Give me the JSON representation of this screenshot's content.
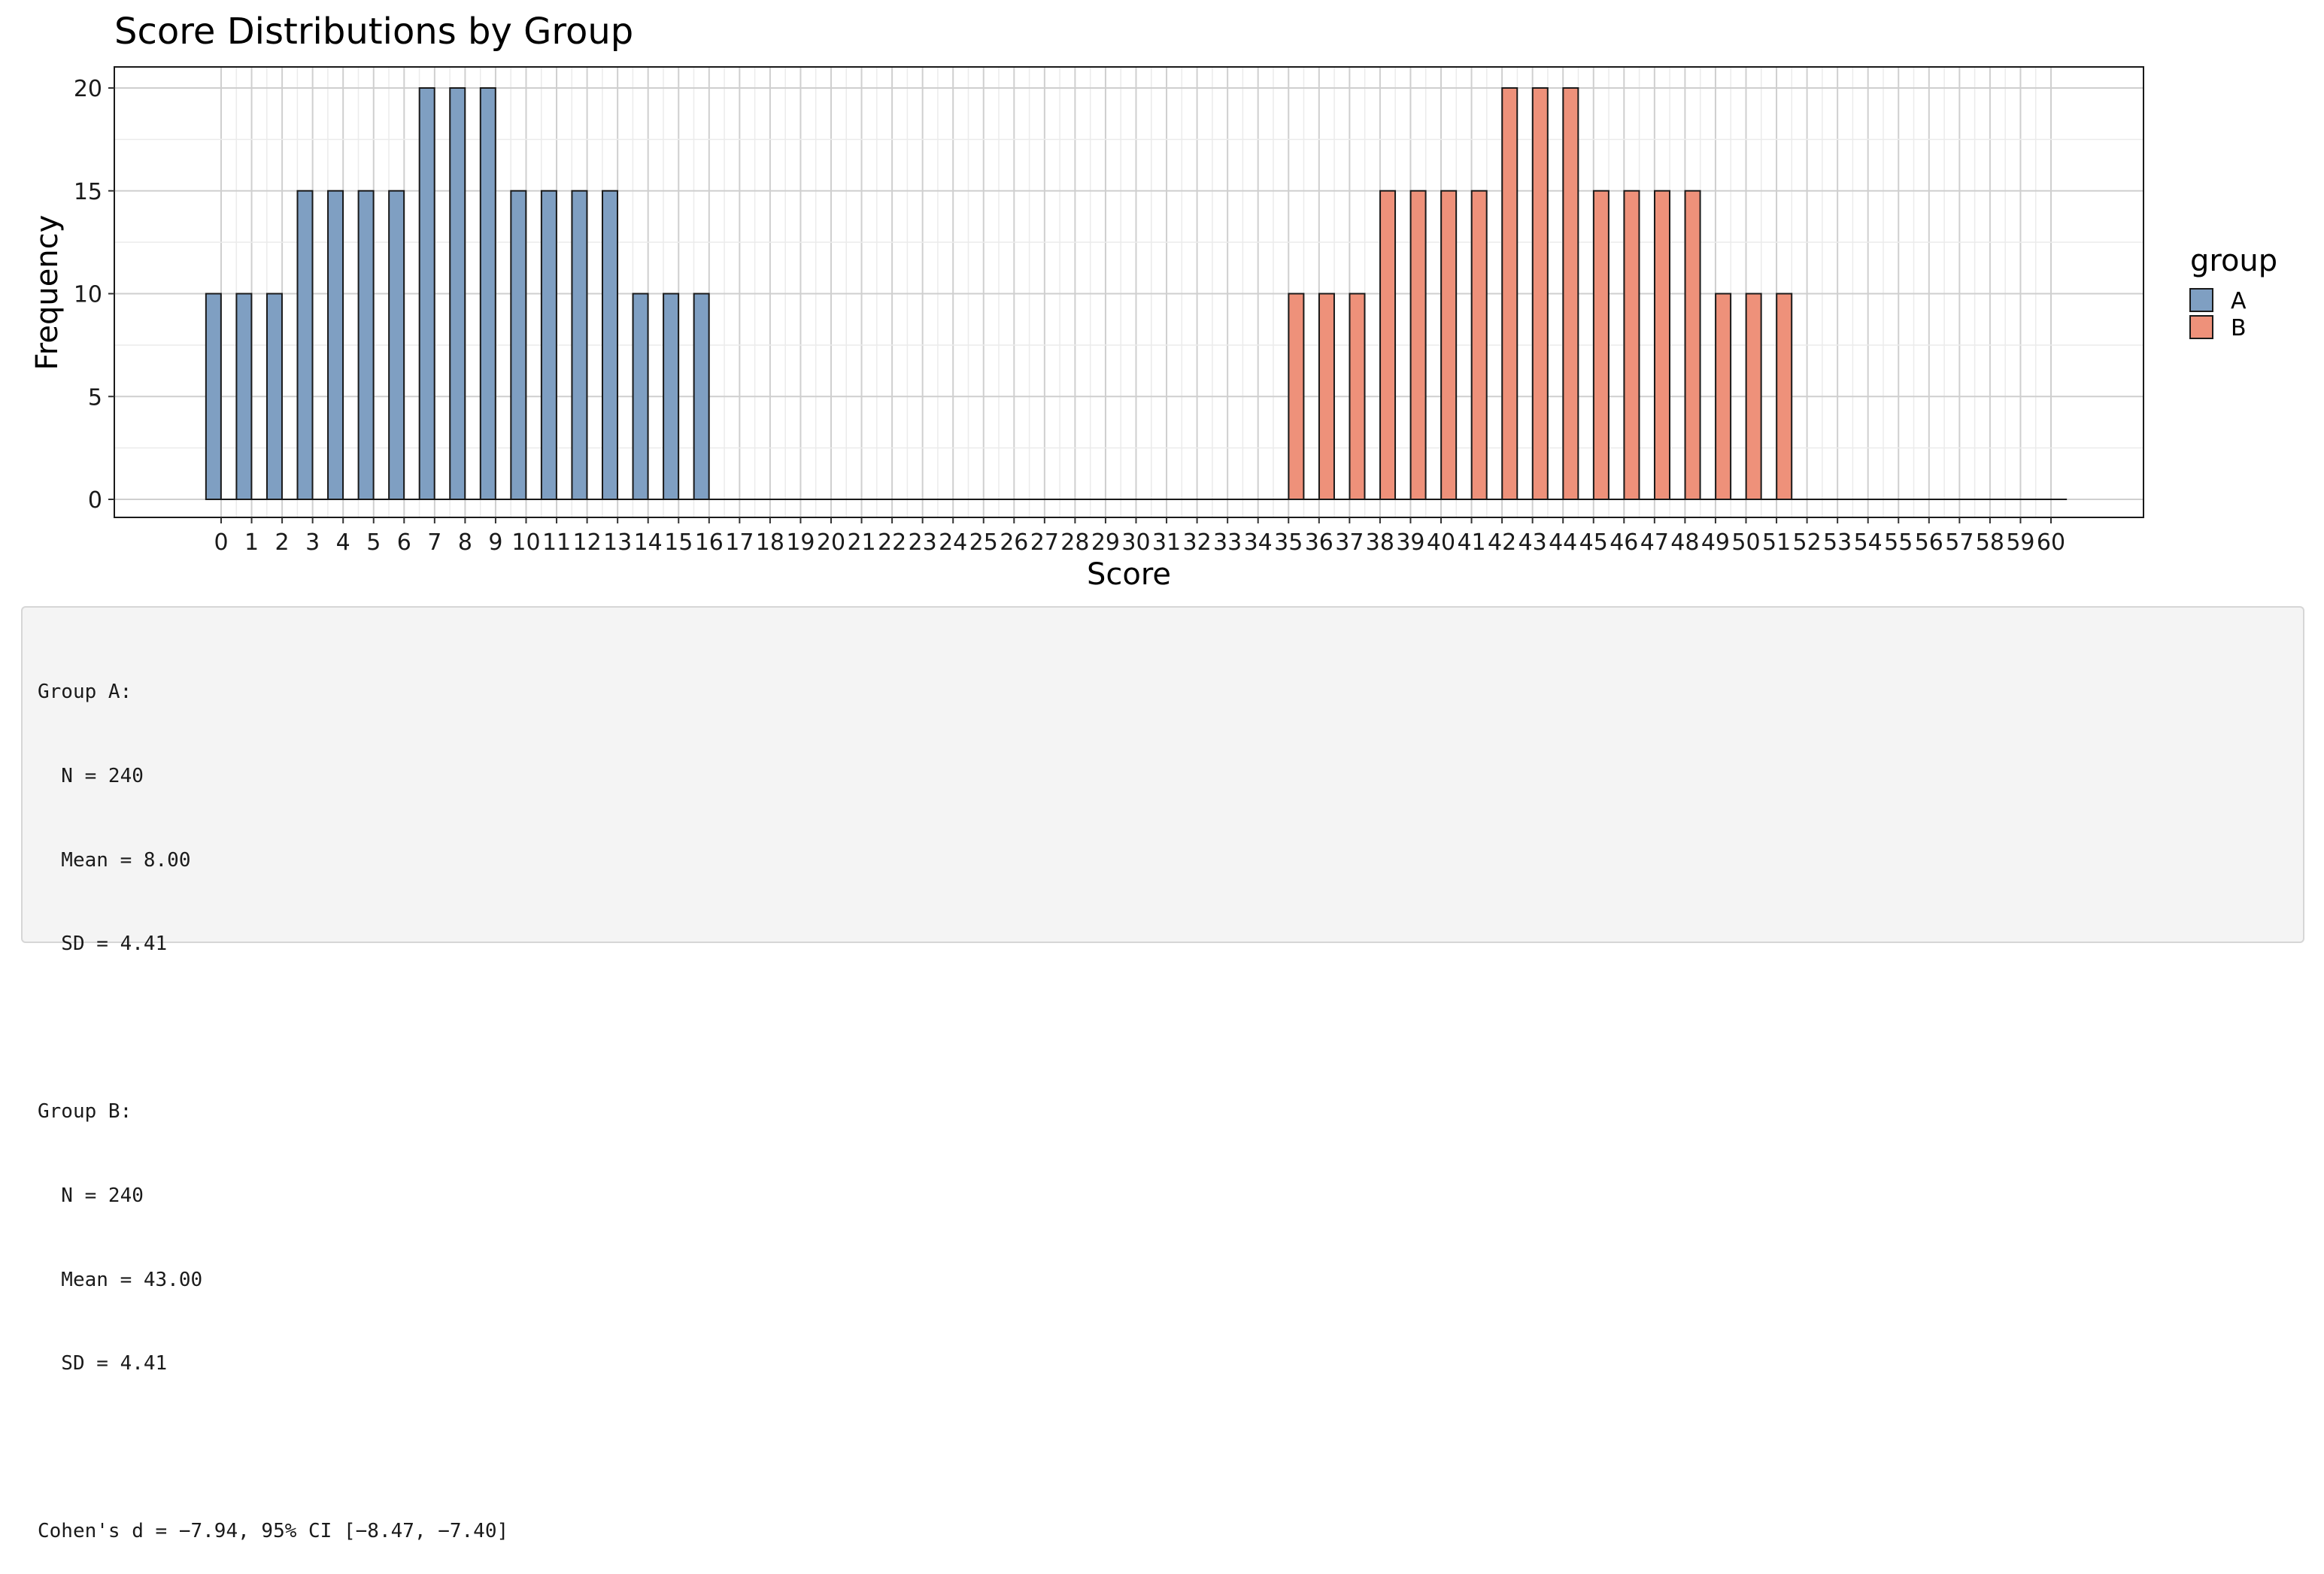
{
  "chart_data": {
    "type": "bar",
    "title": "Score Distributions by Group",
    "xlabel": "Score",
    "ylabel": "Frequency",
    "ylim": [
      0,
      21
    ],
    "yticks": [
      0,
      5,
      10,
      15,
      20
    ],
    "grid": true,
    "legend": {
      "title": "group",
      "position": "right"
    },
    "categories": [
      0,
      1,
      2,
      3,
      4,
      5,
      6,
      7,
      8,
      9,
      10,
      11,
      12,
      13,
      14,
      15,
      16,
      17,
      18,
      19,
      20,
      21,
      22,
      23,
      24,
      25,
      26,
      27,
      28,
      29,
      30,
      31,
      32,
      33,
      34,
      35,
      36,
      37,
      38,
      39,
      40,
      41,
      42,
      43,
      44,
      45,
      46,
      47,
      48,
      49,
      50,
      51,
      52,
      53,
      54,
      55,
      56,
      57,
      58,
      59,
      60
    ],
    "tick_labels": [
      "0",
      "1",
      "2",
      "3",
      "4",
      "5",
      "6",
      "7",
      "8",
      "9",
      "10",
      "11",
      "12",
      "13",
      "14",
      "15",
      "16",
      "17",
      "18",
      "19",
      "20",
      "21",
      "22",
      "23",
      "24",
      "25",
      "26",
      "27",
      "28",
      "29",
      "30",
      "31",
      "32",
      "33",
      "34",
      "35",
      "36",
      "37",
      "38",
      "39",
      "40",
      "41",
      "42",
      "43",
      "44",
      "45",
      "46",
      "47",
      "48",
      "49",
      "50",
      "51",
      "52",
      "53",
      "54",
      "55",
      "56",
      "57",
      "58",
      "59",
      "60"
    ],
    "series": [
      {
        "name": "A",
        "color": "#7f9fc2",
        "values": [
          10,
          10,
          10,
          15,
          15,
          15,
          15,
          20,
          20,
          20,
          15,
          15,
          15,
          15,
          10,
          10,
          10,
          0,
          0,
          0,
          0,
          0,
          0,
          0,
          0,
          0,
          0,
          0,
          0,
          0,
          0,
          0,
          0,
          0,
          0,
          0,
          0,
          0,
          0,
          0,
          0,
          0,
          0,
          0,
          0,
          0,
          0,
          0,
          0,
          0,
          0,
          0,
          0,
          0,
          0,
          0,
          0,
          0,
          0,
          0,
          0
        ]
      },
      {
        "name": "B",
        "color": "#ee917a",
        "values": [
          0,
          0,
          0,
          0,
          0,
          0,
          0,
          0,
          0,
          0,
          0,
          0,
          0,
          0,
          0,
          0,
          0,
          0,
          0,
          0,
          0,
          0,
          0,
          0,
          0,
          0,
          0,
          0,
          0,
          0,
          0,
          0,
          0,
          0,
          0,
          10,
          10,
          10,
          15,
          15,
          15,
          15,
          20,
          20,
          20,
          15,
          15,
          15,
          15,
          10,
          10,
          10,
          0,
          0,
          0,
          0,
          0,
          0,
          0,
          0,
          0
        ]
      }
    ]
  },
  "stats": {
    "lines": [
      "Group A:",
      "  N = 240",
      "  Mean = 8.00",
      "  SD = 4.41",
      "",
      "Group B:",
      "  N = 240",
      "  Mean = 43.00",
      "  SD = 4.41",
      "",
      "Cohen's d = −7.94, 95% CI [−8.47, −7.40]"
    ]
  }
}
